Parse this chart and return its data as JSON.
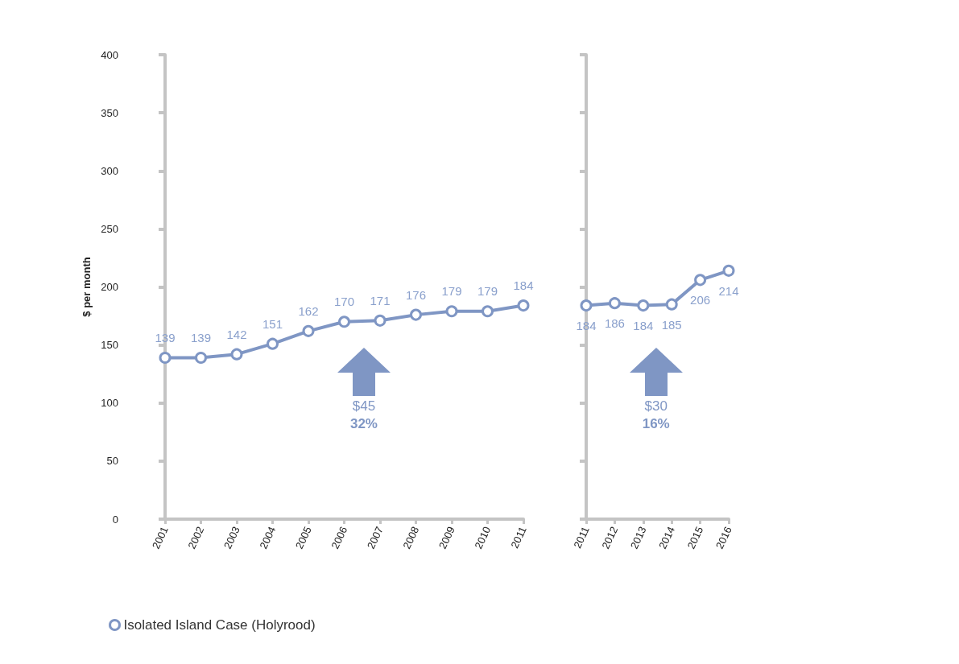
{
  "chart_data": [
    {
      "type": "line",
      "ylabel": "$ per month",
      "categories": [
        "2001",
        "2002",
        "2003",
        "2004",
        "2005",
        "2006",
        "2007",
        "2008",
        "2009",
        "2010",
        "2011"
      ],
      "series": [
        {
          "name": "Isolated Island Case (Holyrood)",
          "color": "#7f96c4",
          "values": [
            139,
            139,
            142,
            151,
            162,
            170,
            171,
            176,
            179,
            179,
            184
          ]
        }
      ],
      "ylim": [
        0,
        400
      ],
      "yticks": [
        0,
        50,
        100,
        150,
        200,
        250,
        300,
        350,
        400
      ],
      "data_labels": true,
      "marker": "circle",
      "legend": "bottom",
      "grid": false,
      "annotations": [
        "$45",
        "32%"
      ]
    },
    {
      "type": "line",
      "categories": [
        "2011",
        "2012",
        "2013",
        "2014",
        "2015",
        "2016"
      ],
      "series": [
        {
          "color": "#7f96c4",
          "values": [
            184,
            186,
            184,
            185,
            206,
            214
          ]
        }
      ],
      "ylim": [
        0,
        400
      ],
      "yticks": [
        0,
        50,
        100,
        150,
        200,
        250,
        300,
        350,
        400
      ],
      "data_labels": true,
      "marker": "circle",
      "grid": false,
      "tick_labels": "x",
      "annotations": [
        "$30",
        "16%"
      ]
    }
  ]
}
